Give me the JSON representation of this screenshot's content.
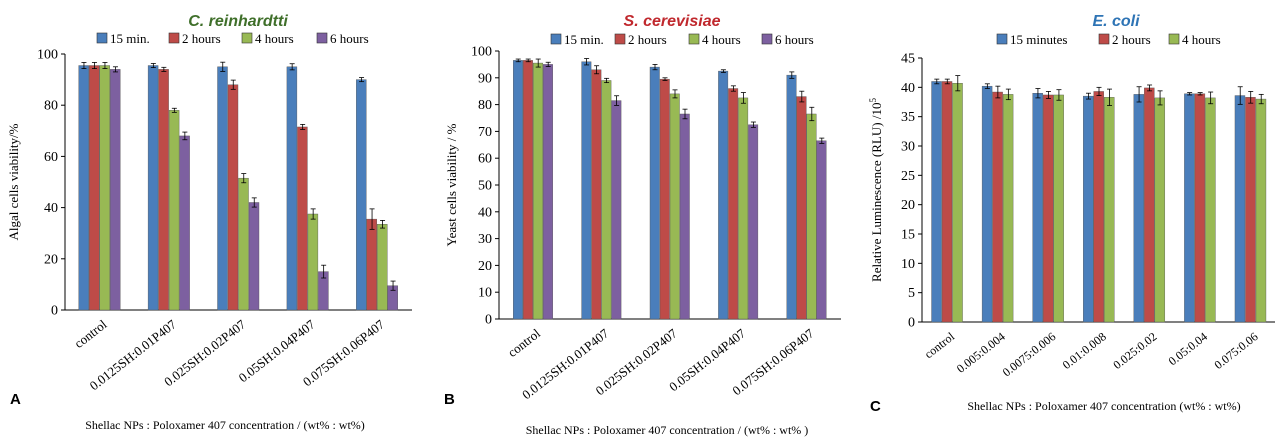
{
  "colors": {
    "blue": "#4a7ebb",
    "red": "#be4b48",
    "green": "#98b954",
    "purple": "#7d60a0",
    "titleA": "#3f6f2a",
    "titleB": "#c0282d",
    "titleC": "#2e74b5"
  },
  "chart_data": [
    {
      "type": "bar",
      "panel_letter": "A",
      "title": "C. reinhardtti",
      "ylabel": "Algal cells viability/%",
      "xlabel": "Shellac NPs : Poloxamer 407 concentration  / (wt% : wt%)",
      "ylim": [
        0,
        100
      ],
      "ytick_labels": [
        "0",
        "20",
        "40",
        "60",
        "80",
        "100"
      ],
      "categories": [
        "control",
        "0.0125SH:0.01P407",
        "0.025SH:0.02P407",
        "0.05SH:0.04P407",
        "0.075SH:0.06P407"
      ],
      "series": [
        {
          "name": "15 min.",
          "color": "blue",
          "values": [
            95.5,
            95.5,
            95.0,
            95.0,
            90.0
          ],
          "errors": [
            1.2,
            0.8,
            1.8,
            1.2,
            0.8
          ]
        },
        {
          "name": "2 hours",
          "color": "red",
          "values": [
            95.5,
            94.0,
            88.0,
            71.5,
            35.5
          ],
          "errors": [
            1.2,
            0.8,
            1.8,
            1.0,
            4.0
          ]
        },
        {
          "name": "4 hours",
          "color": "green",
          "values": [
            95.5,
            78.0,
            51.5,
            37.5,
            33.5
          ],
          "errors": [
            1.2,
            0.8,
            1.8,
            2.0,
            1.5
          ]
        },
        {
          "name": "6 hours",
          "color": "purple",
          "values": [
            94.0,
            68.0,
            42.0,
            15.0,
            9.5
          ],
          "errors": [
            1.0,
            1.5,
            1.8,
            2.5,
            1.8
          ]
        }
      ]
    },
    {
      "type": "bar",
      "panel_letter": "B",
      "title": "S. cerevisiae",
      "ylabel": "Yeast cells viability / %",
      "xlabel": "Shellac NPs : Poloxamer 407 concentration  / (wt% : wt% )",
      "ylim": [
        0,
        100
      ],
      "ytick_labels": [
        "0",
        "10",
        "20",
        "30",
        "40",
        "50",
        "60",
        "70",
        "80",
        "90",
        "100"
      ],
      "categories": [
        "control",
        "0.0125SH:0.01P407",
        "0.025SH:0.02P407",
        "0.05SH:0.04P407",
        "0.075SH:0.06P407"
      ],
      "series": [
        {
          "name": "15 min.",
          "color": "blue",
          "values": [
            96.5,
            96.0,
            94.0,
            92.5,
            91.0
          ],
          "errors": [
            0.5,
            1.2,
            1.0,
            0.5,
            1.2
          ]
        },
        {
          "name": "2 hours",
          "color": "red",
          "values": [
            96.5,
            93.0,
            89.5,
            86.0,
            83.0
          ],
          "errors": [
            0.5,
            1.5,
            0.5,
            1.0,
            2.0
          ]
        },
        {
          "name": "4 hours",
          "color": "green",
          "values": [
            95.5,
            89.0,
            84.0,
            82.5,
            76.5
          ],
          "errors": [
            1.5,
            0.8,
            1.5,
            2.0,
            2.5
          ]
        },
        {
          "name": "6 hours",
          "color": "purple",
          "values": [
            95.0,
            81.5,
            76.5,
            72.5,
            66.5
          ],
          "errors": [
            0.8,
            1.8,
            1.8,
            1.0,
            1.0
          ]
        }
      ]
    },
    {
      "type": "bar",
      "panel_letter": "C",
      "title": "E. coli",
      "ylabel": "Relative Luminescence (RLU) /10",
      "ylabel_exponent": "5",
      "xlabel": "Shellac NPs : Poloxamer 407 concentration  (wt% : wt%)",
      "ylim": [
        0,
        45
      ],
      "ytick_labels": [
        "0",
        "5",
        "10",
        "15",
        "20",
        "25",
        "30",
        "35",
        "40",
        "45"
      ],
      "categories": [
        "control",
        "0.005:0.004",
        "0.0075:0.006",
        "0.01:0.008",
        "0.025:0.02",
        "0.05:0.04",
        "0.075:0.06"
      ],
      "series": [
        {
          "name": "15 minutes",
          "color": "blue",
          "values": [
            41.0,
            40.2,
            39.0,
            38.5,
            38.8,
            38.9,
            38.6
          ],
          "errors": [
            0.4,
            0.4,
            0.8,
            0.5,
            1.3,
            0.2,
            1.5
          ]
        },
        {
          "name": "2 hours",
          "color": "red",
          "values": [
            41.0,
            39.2,
            38.7,
            39.3,
            39.9,
            38.9,
            38.3
          ],
          "errors": [
            0.4,
            1.0,
            0.6,
            0.7,
            0.5,
            0.2,
            1.0
          ]
        },
        {
          "name": "4 hours",
          "color": "green",
          "values": [
            40.7,
            38.8,
            38.7,
            38.3,
            38.2,
            38.2,
            38.0
          ],
          "errors": [
            1.3,
            0.9,
            0.9,
            1.4,
            1.2,
            1.0,
            0.8
          ]
        }
      ]
    }
  ]
}
